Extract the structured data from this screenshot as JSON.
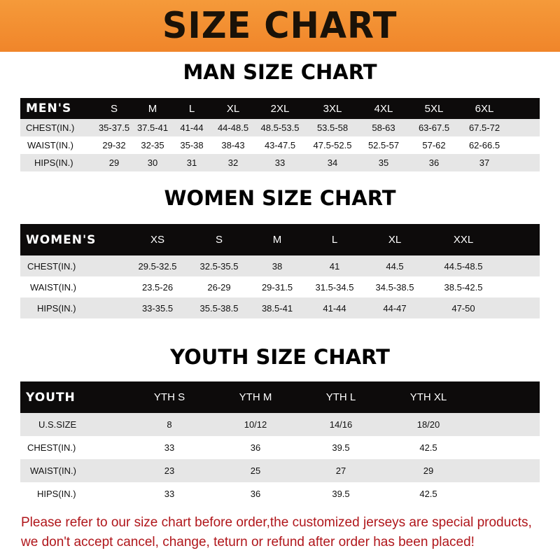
{
  "banner": {
    "title": "SIZE CHART",
    "color": "#f0852a"
  },
  "men": {
    "title": "MAN SIZE CHART",
    "header": "MEN'S",
    "sizes": [
      "S",
      "M",
      "L",
      "XL",
      "2XL",
      "3XL",
      "4XL",
      "5XL",
      "6XL"
    ],
    "rows": [
      {
        "label": "CHEST(IN.)",
        "values": [
          "35-37.5",
          "37.5-41",
          "41-44",
          "44-48.5",
          "48.5-53.5",
          "53.5-58",
          "58-63",
          "63-67.5",
          "67.5-72"
        ]
      },
      {
        "label": "WAIST(IN.)",
        "values": [
          "29-32",
          "32-35",
          "35-38",
          "38-43",
          "43-47.5",
          "47.5-52.5",
          "52.5-57",
          "57-62",
          "62-66.5"
        ]
      },
      {
        "label": "HIPS(IN.)",
        "values": [
          "29",
          "30",
          "31",
          "32",
          "33",
          "34",
          "35",
          "36",
          "37"
        ]
      }
    ]
  },
  "women": {
    "title": "WOMEN SIZE CHART",
    "header": "WOMEN'S",
    "sizes": [
      "XS",
      "S",
      "M",
      "L",
      "XL",
      "XXL"
    ],
    "rows": [
      {
        "label": "CHEST(IN.)",
        "values": [
          "29.5-32.5",
          "32.5-35.5",
          "38",
          "41",
          "44.5",
          "44.5-48.5"
        ]
      },
      {
        "label": "WAIST(IN.)",
        "values": [
          "23.5-26",
          "26-29",
          "29-31.5",
          "31.5-34.5",
          "34.5-38.5",
          "38.5-42.5"
        ]
      },
      {
        "label": "HIPS(IN.)",
        "values": [
          "33-35.5",
          "35.5-38.5",
          "38.5-41",
          "41-44",
          "44-47",
          "47-50"
        ]
      }
    ]
  },
  "youth": {
    "title": "YOUTH SIZE CHART",
    "header": "YOUTH",
    "sizes": [
      "YTH S",
      "YTH M",
      "YTH L",
      "YTH XL"
    ],
    "rows": [
      {
        "label": "U.S.SIZE",
        "values": [
          "8",
          "10/12",
          "14/16",
          "18/20"
        ]
      },
      {
        "label": "CHEST(IN.)",
        "values": [
          "33",
          "36",
          "39.5",
          "42.5"
        ]
      },
      {
        "label": "WAIST(IN.)",
        "values": [
          "23",
          "25",
          "27",
          "29"
        ]
      },
      {
        "label": "HIPS(IN.)",
        "values": [
          "33",
          "36",
          "39.5",
          "42.5"
        ]
      }
    ]
  },
  "notice": {
    "line1": "Please refer to our size chart before order,the customized jerseys are special products,",
    "line2": "we don't accept cancel, change, teturn or refund after order has been placed!",
    "color": "#b0161b"
  }
}
